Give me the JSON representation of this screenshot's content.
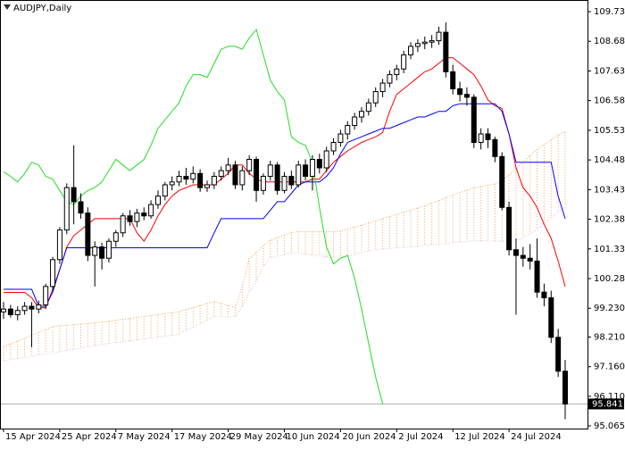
{
  "chart_data": {
    "type": "candlestick",
    "title": "AUDJPY,Daily",
    "x": [
      "15 Apr 2024",
      "16 Apr 2024",
      "17 Apr 2024",
      "18 Apr 2024",
      "19 Apr 2024",
      "22 Apr 2024",
      "23 Apr 2024",
      "24 Apr 2024",
      "25 Apr 2024",
      "26 Apr 2024",
      "29 Apr 2024",
      "30 Apr 2024",
      "1 May 2024",
      "2 May 2024",
      "3 May 2024",
      "6 May 2024",
      "7 May 2024",
      "8 May 2024",
      "9 May 2024",
      "10 May 2024",
      "13 May 2024",
      "14 May 2024",
      "15 May 2024",
      "16 May 2024",
      "17 May 2024",
      "20 May 2024",
      "21 May 2024",
      "22 May 2024",
      "23 May 2024",
      "24 May 2024",
      "27 May 2024",
      "28 May 2024",
      "29 May 2024",
      "30 May 2024",
      "31 May 2024",
      "3 Jun 2024",
      "4 Jun 2024",
      "5 Jun 2024",
      "6 Jun 2024",
      "7 Jun 2024",
      "10 Jun 2024",
      "11 Jun 2024",
      "12 Jun 2024",
      "13 Jun 2024",
      "14 Jun 2024",
      "17 Jun 2024",
      "18 Jun 2024",
      "19 Jun 2024",
      "20 Jun 2024",
      "21 Jun 2024",
      "24 Jun 2024",
      "25 Jun 2024",
      "26 Jun 2024",
      "27 Jun 2024",
      "28 Jun 2024",
      "1 Jul 2024",
      "2 Jul 2024",
      "3 Jul 2024",
      "4 Jul 2024",
      "5 Jul 2024",
      "8 Jul 2024",
      "9 Jul 2024",
      "10 Jul 2024",
      "11 Jul 2024",
      "12 Jul 2024",
      "15 Jul 2024",
      "16 Jul 2024",
      "17 Jul 2024",
      "18 Jul 2024",
      "19 Jul 2024",
      "22 Jul 2024",
      "23 Jul 2024",
      "24 Jul 2024",
      "25 Jul 2024",
      "26 Jul 2024",
      "29 Jul 2024",
      "30 Jul 2024",
      "31 Jul 2024",
      "1 Aug 2024",
      "2 Aug 2024",
      "5 Aug 2024"
    ],
    "open": [
      99.1,
      99.2,
      99.0,
      99.15,
      99.3,
      99.2,
      99.35,
      100.0,
      100.95,
      102.0,
      103.5,
      103.0,
      102.6,
      101.1,
      101.4,
      101.0,
      101.6,
      101.9,
      102.5,
      102.3,
      102.6,
      102.5,
      102.9,
      103.2,
      103.6,
      103.7,
      103.9,
      103.8,
      104.0,
      103.5,
      103.6,
      103.9,
      104.1,
      104.3,
      103.6,
      104.1,
      104.5,
      103.4,
      103.9,
      104.3,
      103.4,
      103.9,
      103.6,
      104.3,
      103.9,
      104.5,
      104.2,
      104.8,
      105.1,
      105.4,
      105.7,
      106.0,
      106.2,
      106.5,
      106.9,
      107.2,
      107.5,
      107.7,
      108.2,
      108.5,
      108.6,
      108.65,
      108.7,
      109.0,
      107.6,
      107.0,
      106.8,
      106.7,
      105.1,
      105.4,
      105.2,
      104.6,
      102.8,
      101.3,
      101.1,
      101.0,
      100.9,
      99.8,
      99.6,
      98.2,
      97.0
    ],
    "high": [
      99.45,
      99.35,
      99.3,
      99.45,
      99.45,
      99.5,
      100.1,
      101.05,
      102.1,
      103.65,
      105.0,
      103.3,
      102.8,
      101.6,
      101.55,
      101.7,
      102.0,
      102.6,
      102.7,
      102.75,
      102.8,
      103.05,
      103.4,
      103.7,
      103.9,
      104.1,
      104.2,
      104.25,
      104.15,
      103.75,
      104.05,
      104.25,
      104.55,
      104.45,
      104.25,
      104.65,
      104.6,
      104.0,
      104.45,
      104.4,
      104.05,
      104.1,
      104.45,
      104.5,
      104.65,
      104.7,
      104.95,
      105.25,
      105.55,
      105.85,
      106.15,
      106.35,
      106.65,
      107.05,
      107.35,
      107.65,
      107.85,
      108.35,
      108.65,
      108.75,
      108.85,
      108.9,
      109.2,
      109.35,
      107.85,
      107.25,
      107.05,
      106.8,
      105.6,
      105.6,
      105.3,
      104.75,
      103.0,
      101.7,
      101.4,
      101.5,
      101.7,
      100.1,
      99.85,
      98.5,
      97.4
    ],
    "low": [
      98.85,
      98.9,
      98.8,
      99.0,
      97.85,
      99.05,
      99.2,
      99.85,
      100.8,
      101.85,
      102.2,
      102.4,
      100.9,
      100.0,
      100.6,
      100.85,
      101.4,
      101.75,
      102.15,
      102.1,
      102.35,
      102.4,
      102.75,
      103.05,
      103.4,
      103.55,
      103.6,
      103.65,
      103.35,
      103.35,
      103.45,
      103.75,
      103.95,
      103.45,
      103.4,
      103.95,
      103.0,
      103.25,
      103.75,
      103.25,
      103.3,
      103.45,
      103.5,
      103.75,
      103.4,
      104.0,
      104.05,
      104.65,
      104.95,
      105.2,
      105.55,
      105.8,
      106.05,
      106.35,
      106.7,
      107.05,
      107.3,
      107.55,
      108.05,
      108.3,
      108.4,
      108.45,
      108.55,
      107.4,
      106.8,
      106.55,
      106.4,
      104.9,
      104.85,
      104.9,
      104.4,
      102.7,
      101.1,
      99.0,
      100.7,
      100.6,
      99.6,
      99.3,
      98.0,
      96.8,
      95.3
    ],
    "close": [
      99.2,
      99.0,
      99.15,
      99.3,
      99.2,
      99.35,
      100.0,
      100.95,
      102.0,
      103.5,
      103.0,
      102.6,
      101.1,
      101.4,
      101.0,
      101.6,
      101.9,
      102.5,
      102.3,
      102.6,
      102.5,
      102.9,
      103.2,
      103.6,
      103.7,
      103.9,
      103.8,
      104.0,
      103.5,
      103.6,
      103.9,
      104.1,
      104.3,
      103.6,
      104.1,
      104.5,
      103.4,
      103.9,
      104.3,
      103.4,
      103.9,
      103.6,
      104.3,
      103.9,
      104.5,
      104.2,
      104.8,
      105.1,
      105.4,
      105.7,
      106.0,
      106.2,
      106.5,
      106.9,
      107.2,
      107.5,
      107.7,
      108.2,
      108.5,
      108.6,
      108.65,
      108.7,
      109.0,
      107.6,
      107.0,
      106.8,
      106.7,
      105.1,
      105.4,
      105.2,
      104.6,
      102.8,
      101.3,
      101.1,
      101.0,
      100.9,
      99.8,
      99.6,
      98.2,
      97.0,
      95.84
    ],
    "up_color": "#ffffff",
    "down_color": "#000000",
    "cloud": {
      "fill_color": "#f4a460",
      "upper": {
        "color": "#f4a460",
        "values": [
          97.87,
          97.97,
          98.07,
          98.17,
          98.28,
          98.38,
          98.47,
          98.58,
          98.61,
          98.63,
          98.65,
          98.67,
          98.69,
          98.71,
          98.74,
          98.77,
          98.8,
          98.84,
          98.87,
          98.91,
          98.94,
          98.97,
          99.0,
          99.04,
          99.07,
          99.11,
          99.18,
          99.25,
          99.33,
          99.4,
          99.47,
          99.4,
          99.33,
          99.26,
          100.0,
          101.0,
          101.2,
          101.45,
          101.64,
          101.73,
          101.82,
          101.91,
          101.94,
          101.94,
          101.94,
          101.94,
          101.94,
          101.94,
          101.96,
          102.03,
          102.1,
          102.17,
          102.25,
          102.32,
          102.4,
          102.47,
          102.55,
          102.63,
          102.7,
          102.78,
          102.86,
          102.95,
          103.04,
          103.14,
          103.23,
          103.33,
          103.41,
          103.5,
          103.54,
          103.59,
          103.63,
          103.75,
          103.95,
          104.16,
          104.41,
          104.63,
          104.86,
          105.02,
          105.19,
          105.36,
          105.47
        ]
      },
      "lower": {
        "color": "#d8bfd8",
        "values": [
          97.37,
          97.41,
          97.45,
          97.49,
          97.53,
          97.57,
          97.61,
          97.65,
          97.69,
          97.74,
          97.78,
          97.82,
          97.86,
          97.91,
          97.95,
          97.99,
          98.02,
          98.05,
          98.08,
          98.11,
          98.14,
          98.18,
          98.21,
          98.24,
          98.27,
          98.32,
          98.44,
          98.55,
          98.68,
          98.81,
          98.93,
          98.93,
          98.93,
          98.93,
          99.3,
          99.79,
          100.2,
          100.7,
          101.02,
          101.07,
          101.12,
          101.18,
          101.19,
          101.15,
          101.11,
          101.08,
          101.05,
          101.02,
          101.02,
          101.08,
          101.14,
          101.2,
          101.26,
          101.3,
          101.32,
          101.34,
          101.36,
          101.38,
          101.4,
          101.42,
          101.45,
          101.47,
          101.5,
          101.52,
          101.55,
          101.57,
          101.6,
          101.62,
          101.62,
          101.61,
          101.61,
          101.6,
          101.6,
          101.6,
          101.74,
          101.86,
          102.02,
          102.22,
          102.42,
          102.62,
          102.77
        ]
      }
    },
    "series": [
      {
        "color": "#ff0000",
        "values": [
          99.79,
          99.79,
          99.79,
          99.79,
          99.6,
          99.25,
          99.25,
          99.9,
          100.6,
          101.4,
          101.8,
          102.0,
          102.2,
          102.4,
          102.4,
          102.4,
          102.4,
          102.4,
          102.4,
          101.9,
          101.6,
          102.0,
          102.5,
          102.9,
          103.2,
          103.4,
          103.5,
          103.6,
          103.6,
          103.6,
          103.6,
          103.8,
          104.0,
          104.3,
          104.3,
          104.0,
          103.8,
          103.7,
          103.7,
          103.7,
          103.7,
          103.7,
          103.7,
          103.7,
          103.8,
          103.8,
          104.1,
          104.4,
          104.6,
          104.8,
          104.95,
          105.1,
          105.2,
          105.3,
          105.45,
          106.2,
          106.8,
          107.0,
          107.2,
          107.4,
          107.6,
          107.7,
          107.9,
          108.1,
          108.1,
          107.9,
          107.7,
          107.5,
          107.1,
          106.6,
          106.4,
          106.3,
          105.4,
          104.2,
          103.5,
          103.2,
          102.8,
          102.2,
          101.7,
          100.9,
          100.0
        ]
      },
      {
        "color": "#0000ff",
        "values": [
          99.9,
          99.9,
          99.9,
          99.9,
          99.9,
          99.3,
          99.3,
          99.8,
          100.6,
          101.37,
          101.37,
          101.37,
          101.37,
          101.37,
          101.37,
          101.37,
          101.37,
          101.37,
          101.37,
          101.37,
          101.37,
          101.37,
          101.37,
          101.37,
          101.37,
          101.37,
          101.37,
          101.37,
          101.37,
          101.37,
          101.9,
          102.4,
          102.4,
          102.4,
          102.4,
          102.4,
          102.4,
          102.4,
          102.7,
          103.0,
          103.0,
          103.3,
          103.6,
          103.7,
          103.7,
          103.7,
          103.9,
          104.2,
          104.7,
          105.1,
          105.2,
          105.3,
          105.4,
          105.5,
          105.6,
          105.6,
          105.7,
          105.8,
          105.9,
          106.0,
          106.0,
          106.1,
          106.2,
          106.2,
          106.4,
          106.47,
          106.47,
          106.47,
          106.47,
          106.47,
          106.47,
          106.2,
          105.4,
          104.4,
          104.4,
          104.4,
          104.4,
          104.4,
          104.4,
          103.2,
          102.4
        ]
      },
      {
        "color": "#22dd22",
        "values": [
          104.06,
          103.9,
          103.7,
          104.0,
          104.4,
          104.3,
          103.9,
          103.8,
          103.4,
          103.0,
          102.9,
          103.2,
          103.4,
          103.5,
          103.7,
          104.1,
          104.5,
          104.3,
          104.1,
          104.3,
          104.5,
          105.0,
          105.6,
          105.9,
          106.2,
          106.5,
          107.1,
          107.5,
          107.5,
          107.4,
          107.9,
          108.4,
          108.5,
          108.5,
          108.4,
          108.8,
          109.1,
          108.2,
          107.3,
          106.9,
          106.6,
          105.3,
          105.1,
          105.0,
          104.4,
          102.8,
          101.4,
          100.8,
          101.0,
          101.1,
          100.3,
          99.2,
          98.0,
          96.8,
          95.84,
          null,
          null,
          null,
          null,
          null,
          null,
          null,
          null,
          null,
          null,
          null,
          null,
          null,
          null,
          null,
          null,
          null,
          null,
          null,
          null,
          null,
          null,
          null,
          null,
          null,
          null
        ]
      }
    ],
    "last_price": 95.841,
    "ylim": [
      94.97,
      110.11
    ],
    "yticks": [
      {
        "value": 109.73,
        "label": "109.730"
      },
      {
        "value": 108.68,
        "label": "108.680"
      },
      {
        "value": 107.63,
        "label": "107.630"
      },
      {
        "value": 106.58,
        "label": "106.580"
      },
      {
        "value": 105.53,
        "label": "105.530"
      },
      {
        "value": 104.48,
        "label": "104.480"
      },
      {
        "value": 103.43,
        "label": "103.430"
      },
      {
        "value": 102.38,
        "label": "102.380"
      },
      {
        "value": 101.33,
        "label": "101.330"
      },
      {
        "value": 100.28,
        "label": "100.280"
      },
      {
        "value": 99.23,
        "label": "99.230"
      },
      {
        "value": 98.21,
        "label": "98.210"
      },
      {
        "value": 97.16,
        "label": "97.160"
      },
      {
        "value": 96.11,
        "label": "96.110"
      },
      95.065
    ],
    "xticks": [
      "15 Apr 2024",
      "25 Apr 2024",
      "7 May 2024",
      "17 May 2024",
      "29 May 2024",
      "10 Jun 2024",
      "20 Jun 2024",
      "2 Jul 2024",
      "12 Jul 2024",
      "24 Jul 2024"
    ]
  }
}
